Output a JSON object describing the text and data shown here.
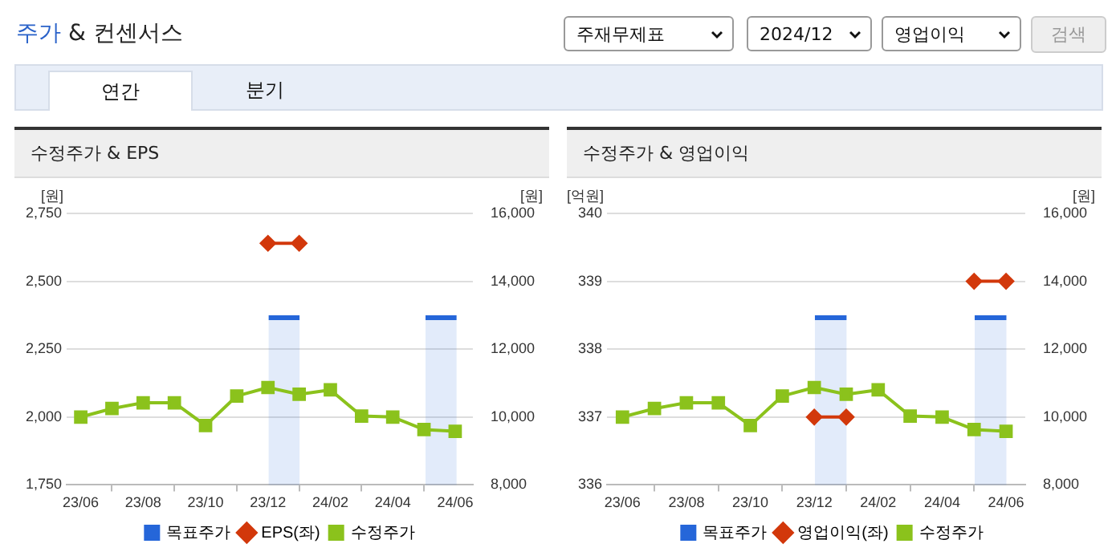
{
  "chart_data": [
    {
      "type": "other",
      "title": "주가 & 컨센서스",
      "annotations": [
        "주재무제표",
        "2024/12",
        "영업이익",
        "검색",
        "연간",
        "분기"
      ]
    },
    {
      "type": "line",
      "title": "수정주가 & EPS",
      "ylabel": "[원]",
      "y2label": "[원]",
      "x": [
        "2023-06",
        "2023-07",
        "2023-08",
        "2023-09",
        "2023-10",
        "2023-11",
        "2023-12",
        "2024-01",
        "2024-02",
        "2024-03",
        "2024-04",
        "2024-05",
        "2024-06"
      ],
      "xlim": [
        "2023-05-18",
        "2024-06-18"
      ],
      "xticks": [
        {
          "value": "2023-06",
          "label": "23/06"
        },
        {
          "value": "2023-08",
          "label": "23/08"
        },
        {
          "value": "2023-10",
          "label": "23/10"
        },
        {
          "value": "2023-12",
          "label": "23/12"
        },
        {
          "value": "2024-02",
          "label": "24/02"
        },
        {
          "value": "2024-04",
          "label": "24/04"
        },
        {
          "value": "2024-06",
          "label": "24/06"
        }
      ],
      "ylim": [
        1750,
        2750
      ],
      "yticks": [
        {
          "value": 1750,
          "label": "1,750"
        },
        {
          "value": 2000,
          "label": "2,000"
        },
        {
          "value": 2250,
          "label": "2,250"
        },
        {
          "value": 2500,
          "label": "2,500"
        },
        {
          "value": 2750,
          "label": "2,750"
        }
      ],
      "y2lim": [
        8000,
        16000
      ],
      "y2ticks": [
        {
          "value": 8000,
          "label": "8,000"
        },
        {
          "value": 10000,
          "label": "10,000"
        },
        {
          "value": 12000,
          "label": "12,000"
        },
        {
          "value": 14000,
          "label": "14,000"
        },
        {
          "value": 16000,
          "label": "16,000"
        }
      ],
      "grid": "y",
      "legend": "bottom",
      "series": [
        {
          "name": "목표주가",
          "type": "bar",
          "axis": "y2",
          "color": "#2566d9",
          "x": [
            "2023-12-17",
            "2024-05-18"
          ],
          "values": [
            13000,
            13000
          ]
        },
        {
          "name": "EPS(좌)",
          "type": "line",
          "axis": "y",
          "color": "#d2380b",
          "marker": "diamond",
          "values": [
            null,
            null,
            null,
            null,
            null,
            null,
            2640,
            2640,
            null,
            null,
            null,
            null,
            null
          ]
        },
        {
          "name": "수정주가",
          "type": "line",
          "axis": "y2",
          "color": "#8bc21c",
          "marker": "square",
          "values": [
            10000,
            10250,
            10420,
            10420,
            9750,
            10620,
            10870,
            10670,
            10800,
            10030,
            10000,
            9630,
            9580
          ]
        }
      ]
    },
    {
      "type": "line",
      "title": "수정주가 & 영업이익",
      "ylabel": "[억원]",
      "y2label": "[원]",
      "x": [
        "2023-06",
        "2023-07",
        "2023-08",
        "2023-09",
        "2023-10",
        "2023-11",
        "2023-12",
        "2024-01",
        "2024-02",
        "2024-03",
        "2024-04",
        "2024-05",
        "2024-06"
      ],
      "xlim": [
        "2023-05-17",
        "2024-06-19"
      ],
      "xticks": [
        {
          "value": "2023-06",
          "label": "23/06"
        },
        {
          "value": "2023-08",
          "label": "23/08"
        },
        {
          "value": "2023-10",
          "label": "23/10"
        },
        {
          "value": "2023-12",
          "label": "23/12"
        },
        {
          "value": "2024-02",
          "label": "24/02"
        },
        {
          "value": "2024-04",
          "label": "24/04"
        },
        {
          "value": "2024-06",
          "label": "24/06"
        }
      ],
      "ylim": [
        336,
        340
      ],
      "yticks": [
        336,
        337,
        338,
        339,
        340
      ],
      "y2lim": [
        8000,
        16000
      ],
      "y2ticks": [
        {
          "value": 8000,
          "label": "8,000"
        },
        {
          "value": 10000,
          "label": "10,000"
        },
        {
          "value": 12000,
          "label": "12,000"
        },
        {
          "value": 14000,
          "label": "14,000"
        },
        {
          "value": 16000,
          "label": "16,000"
        }
      ],
      "grid": "y",
      "legend": "bottom",
      "series": [
        {
          "name": "목표주가",
          "type": "bar",
          "axis": "y2",
          "color": "#2566d9",
          "x": [
            "2023-12-17",
            "2024-05-17"
          ],
          "values": [
            13000,
            13000
          ]
        },
        {
          "name": "영업이익(좌)",
          "type": "line",
          "axis": "y",
          "color": "#d2380b",
          "marker": "diamond",
          "values": [
            null,
            null,
            null,
            null,
            null,
            null,
            337,
            337,
            null,
            null,
            null,
            339,
            339
          ]
        },
        {
          "name": "수정주가",
          "type": "line",
          "axis": "y2",
          "color": "#8bc21c",
          "marker": "square",
          "values": [
            10000,
            10250,
            10420,
            10420,
            9750,
            10620,
            10870,
            10670,
            10800,
            10030,
            10000,
            9630,
            9580
          ]
        }
      ]
    }
  ]
}
